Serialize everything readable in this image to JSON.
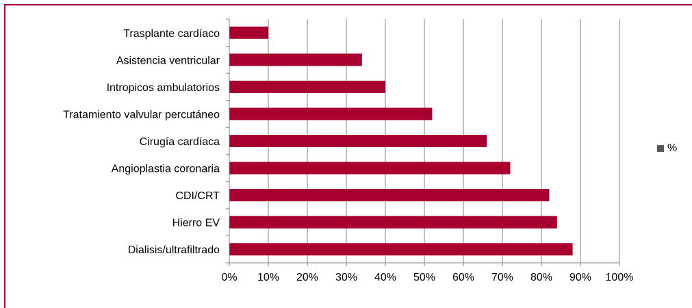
{
  "chart_data": {
    "type": "bar",
    "orientation": "horizontal",
    "categories": [
      "Trasplante cardíaco",
      "Asistencia ventricular",
      "Intropicos ambulatorios",
      "Tratamiento valvular percutáneo",
      "Cirugía cardíaca",
      "Angioplastia coronaria",
      "CDI/CRT",
      "Hierro EV",
      "Dialisis/ultrafiltrado"
    ],
    "series": [
      {
        "name": "%",
        "values": [
          10,
          34,
          40,
          52,
          66,
          72,
          82,
          84,
          88
        ]
      }
    ],
    "xlim": [
      0,
      100
    ],
    "xticks": [
      "0%",
      "10%",
      "20%",
      "30%",
      "40%",
      "50%",
      "60%",
      "70%",
      "80%",
      "90%",
      "100%"
    ],
    "grid": "vertical",
    "legend_position": "right",
    "colors": {
      "bar": "#a8002f",
      "frame": "#a8092e",
      "grid": "#808080",
      "legend_swatch": "#595959"
    }
  }
}
